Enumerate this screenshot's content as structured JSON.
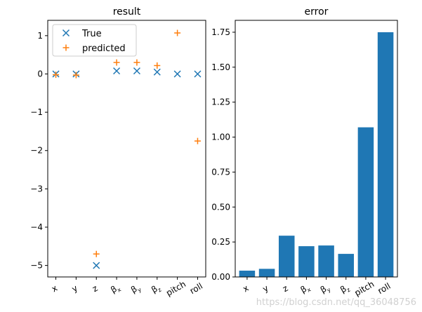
{
  "chart_data": [
    {
      "type": "scatter",
      "title": "result",
      "categories": [
        "x",
        "y",
        "z",
        "β_x",
        "β_y",
        "β_z",
        "pitch",
        "roll"
      ],
      "ylim": [
        -5.3,
        1.4
      ],
      "yticks": [
        1,
        0,
        -1,
        -2,
        -3,
        -4,
        -5
      ],
      "ytick_labels": [
        "1",
        "0",
        "−1",
        "−2",
        "−3",
        "−4",
        "−5"
      ],
      "legend_position": "top-left",
      "series": [
        {
          "name": "True",
          "marker": "x",
          "color": "#1f77b4",
          "values": [
            0,
            0,
            -5.0,
            0.08,
            0.08,
            0.05,
            0,
            0
          ]
        },
        {
          "name": "predicted",
          "marker": "+",
          "color": "#ff7f0e",
          "values": [
            -0.02,
            -0.03,
            -4.7,
            0.3,
            0.3,
            0.22,
            1.07,
            -1.75
          ]
        }
      ]
    },
    {
      "type": "bar",
      "title": "error",
      "categories": [
        "x",
        "y",
        "z",
        "β_x",
        "β_y",
        "β_z",
        "pitch",
        "roll"
      ],
      "values": [
        0.045,
        0.058,
        0.295,
        0.22,
        0.225,
        0.165,
        1.07,
        1.75
      ],
      "color": "#1f77b4",
      "ylim": [
        0,
        1.835
      ],
      "yticks": [
        0,
        0.25,
        0.5,
        0.75,
        1.0,
        1.25,
        1.5,
        1.75
      ],
      "ytick_labels": [
        "0.00",
        "0.25",
        "0.50",
        "0.75",
        "1.00",
        "1.25",
        "1.50",
        "1.75"
      ]
    }
  ],
  "watermark": "https://blog.csdn.net/qq_36048756"
}
